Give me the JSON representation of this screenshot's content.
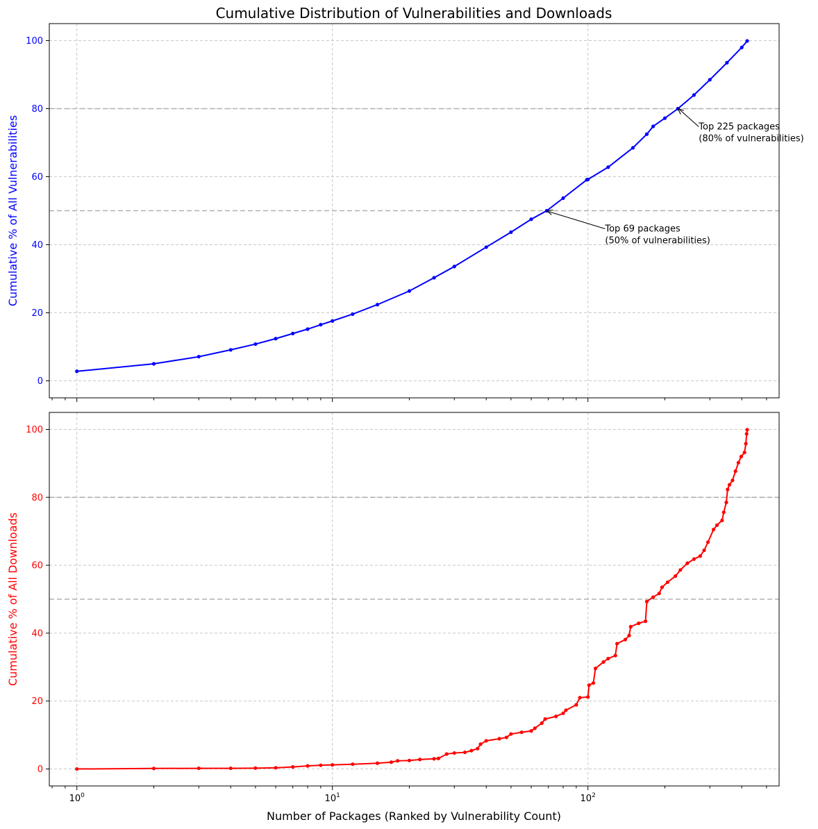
{
  "figure": {
    "title": "Cumulative Distribution of Vulnerabilities and Downloads",
    "xlabel": "Number of Packages (Ranked by Vulnerability Count)"
  },
  "chart_data": [
    {
      "type": "line",
      "panel": "top",
      "title": "Cumulative Distribution of Vulnerabilities and Downloads",
      "ylabel": "Cumulative % of All Vulnerabilities",
      "color": "#0000ff",
      "xscale": "log",
      "xlim": [
        0.78,
        560
      ],
      "ylim": [
        -5,
        105
      ],
      "yticks": [
        "0",
        "20",
        "40",
        "60",
        "80",
        "100"
      ],
      "xticks": [
        {
          "base": "10",
          "exp": "0",
          "value": 1
        },
        {
          "base": "10",
          "exp": "1",
          "value": 10
        },
        {
          "base": "10",
          "exp": "2",
          "value": 100
        }
      ],
      "grid": true,
      "hlines": [
        50,
        80
      ],
      "points": [
        [
          1,
          2.8
        ],
        [
          2,
          5.0
        ],
        [
          3,
          7.1
        ],
        [
          4,
          9.1
        ],
        [
          5,
          10.8
        ],
        [
          6,
          12.4
        ],
        [
          7,
          13.9
        ],
        [
          8,
          15.2
        ],
        [
          9,
          16.5
        ],
        [
          10,
          17.6
        ],
        [
          12,
          19.6
        ],
        [
          15,
          22.4
        ],
        [
          20,
          26.4
        ],
        [
          25,
          30.3
        ],
        [
          30,
          33.6
        ],
        [
          40,
          39.3
        ],
        [
          50,
          43.7
        ],
        [
          60,
          47.5
        ],
        [
          69,
          50.0
        ],
        [
          80,
          53.7
        ],
        [
          99,
          59.1
        ],
        [
          100,
          59.2
        ],
        [
          120,
          62.8
        ],
        [
          150,
          68.5
        ],
        [
          170,
          72.5
        ],
        [
          180,
          74.8
        ],
        [
          200,
          77.2
        ],
        [
          225,
          80.0
        ],
        [
          260,
          84.0
        ],
        [
          300,
          88.5
        ],
        [
          350,
          93.5
        ],
        [
          400,
          98.0
        ],
        [
          420,
          99.9
        ]
      ],
      "annotations": [
        {
          "line1": "Top 69 packages",
          "line2": "(50% of vulnerabilities)",
          "x": 69,
          "y": 50
        },
        {
          "line1": "Top 225 packages",
          "line2": "(80% of vulnerabilities)",
          "x": 225,
          "y": 80
        }
      ]
    },
    {
      "type": "line",
      "panel": "bottom",
      "ylabel": "Cumulative % of All Downloads",
      "color": "#ff0000",
      "xscale": "log",
      "xlim": [
        0.78,
        560
      ],
      "ylim": [
        -5,
        105
      ],
      "yticks": [
        "0",
        "20",
        "40",
        "60",
        "80",
        "100"
      ],
      "xticks": [
        {
          "base": "10",
          "exp": "0",
          "value": 1
        },
        {
          "base": "10",
          "exp": "1",
          "value": 10
        },
        {
          "base": "10",
          "exp": "2",
          "value": 100
        }
      ],
      "grid": true,
      "hlines": [
        50,
        80
      ],
      "points": [
        [
          1,
          0.0
        ],
        [
          2,
          0.15
        ],
        [
          3,
          0.2
        ],
        [
          4,
          0.2
        ],
        [
          5,
          0.25
        ],
        [
          6,
          0.35
        ],
        [
          7,
          0.6
        ],
        [
          8,
          0.9
        ],
        [
          9,
          1.1
        ],
        [
          10,
          1.2
        ],
        [
          12,
          1.4
        ],
        [
          15,
          1.7
        ],
        [
          17,
          2.0
        ],
        [
          18,
          2.4
        ],
        [
          20,
          2.5
        ],
        [
          22,
          2.8
        ],
        [
          25,
          3.0
        ],
        [
          26,
          3.1
        ],
        [
          28,
          4.4
        ],
        [
          30,
          4.7
        ],
        [
          33,
          4.9
        ],
        [
          35,
          5.4
        ],
        [
          37,
          6.0
        ],
        [
          38,
          7.3
        ],
        [
          40,
          8.3
        ],
        [
          45,
          8.9
        ],
        [
          48,
          9.3
        ],
        [
          50,
          10.3
        ],
        [
          55,
          10.8
        ],
        [
          60,
          11.2
        ],
        [
          62,
          12.0
        ],
        [
          66,
          13.5
        ],
        [
          68,
          14.7
        ],
        [
          75,
          15.5
        ],
        [
          80,
          16.4
        ],
        [
          82,
          17.3
        ],
        [
          90,
          18.9
        ],
        [
          93,
          21.0
        ],
        [
          100,
          21.2
        ],
        [
          101,
          24.7
        ],
        [
          105,
          25.3
        ],
        [
          107,
          29.6
        ],
        [
          115,
          31.5
        ],
        [
          120,
          32.5
        ],
        [
          128,
          33.4
        ],
        [
          130,
          36.9
        ],
        [
          140,
          38.1
        ],
        [
          145,
          39.3
        ],
        [
          147,
          41.9
        ],
        [
          158,
          42.9
        ],
        [
          168,
          43.5
        ],
        [
          170,
          49.3
        ],
        [
          180,
          50.6
        ],
        [
          190,
          51.7
        ],
        [
          195,
          53.5
        ],
        [
          205,
          55.0
        ],
        [
          220,
          56.8
        ],
        [
          230,
          58.6
        ],
        [
          245,
          60.6
        ],
        [
          260,
          61.8
        ],
        [
          275,
          62.7
        ],
        [
          285,
          64.4
        ],
        [
          295,
          66.8
        ],
        [
          310,
          70.5
        ],
        [
          320,
          71.8
        ],
        [
          335,
          73.2
        ],
        [
          340,
          75.6
        ],
        [
          348,
          78.5
        ],
        [
          352,
          82.3
        ],
        [
          358,
          83.7
        ],
        [
          368,
          85.0
        ],
        [
          378,
          87.7
        ],
        [
          388,
          90.2
        ],
        [
          398,
          92.0
        ],
        [
          410,
          93.2
        ],
        [
          415,
          95.8
        ],
        [
          418,
          98.7
        ],
        [
          420,
          99.9
        ]
      ]
    }
  ]
}
